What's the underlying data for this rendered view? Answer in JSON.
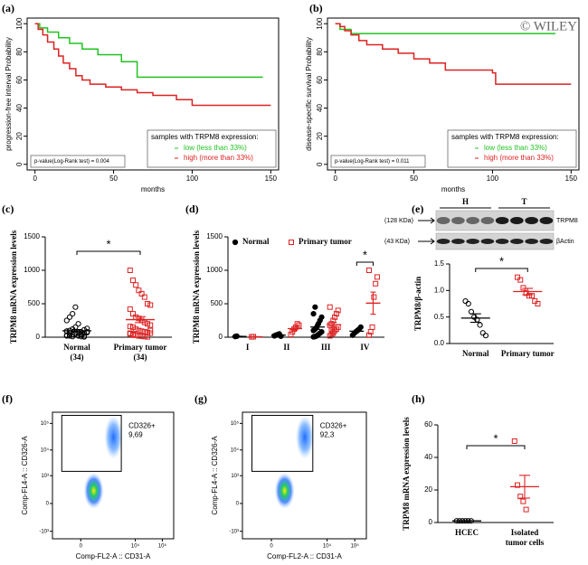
{
  "chart_data": [
    {
      "type": "km",
      "panel_label": "(a)",
      "y_label": "progression-free interval Probability",
      "x_label": "months",
      "xlim": [
        -5,
        155
      ],
      "ylim": [
        -4,
        104
      ],
      "xticks": [
        0,
        50,
        100,
        150
      ],
      "yticks": [
        0,
        20,
        40,
        60,
        80,
        100
      ],
      "legend": "bottom-right",
      "legend_title": "samples with TRPM8 expression:",
      "pvalue_label": "p-value(Log-Rank test) = 0.004",
      "series": [
        {
          "name": "low  (less than 33%)",
          "color": "#22c322",
          "x": [
            0,
            3,
            8,
            15,
            22,
            30,
            40,
            55,
            65,
            145
          ],
          "values": [
            100,
            97,
            94,
            90,
            86,
            82,
            78,
            73,
            62,
            62
          ]
        },
        {
          "name": "high (more than 33%)",
          "color": "#dd2222",
          "x": [
            0,
            2,
            5,
            8,
            12,
            15,
            18,
            22,
            26,
            30,
            35,
            45,
            55,
            65,
            75,
            90,
            100,
            150
          ],
          "values": [
            100,
            96,
            92,
            87,
            82,
            77,
            72,
            68,
            63,
            60,
            57,
            55,
            53,
            51,
            49,
            46,
            42,
            42
          ]
        }
      ]
    },
    {
      "type": "km",
      "panel_label": "(b)",
      "y_label": "disease-specific survival Probability",
      "x_label": "months",
      "watermark": "© WILEY",
      "xlim": [
        -5,
        155
      ],
      "ylim": [
        -4,
        104
      ],
      "xticks": [
        0,
        50,
        100,
        150
      ],
      "yticks": [
        0,
        20,
        40,
        60,
        80,
        100
      ],
      "legend": "bottom-right",
      "legend_title": "samples with TRPM8 expression:",
      "pvalue_label": "p-value(Log-Rank test) = 0.011",
      "series": [
        {
          "name": "low  (less than 33%)",
          "color": "#22c322",
          "x": [
            0,
            3,
            10,
            140
          ],
          "values": [
            100,
            96,
            93,
            93
          ]
        },
        {
          "name": "high (more than 33%)",
          "color": "#dd2222",
          "x": [
            0,
            3,
            6,
            10,
            15,
            20,
            30,
            40,
            50,
            60,
            70,
            100,
            102,
            150
          ],
          "values": [
            100,
            98,
            95,
            92,
            88,
            85,
            82,
            79,
            75,
            72,
            67,
            65,
            57,
            57
          ]
        }
      ]
    },
    {
      "type": "dot",
      "panel_label": "(c)",
      "y_label": "TRPM8 mRNA expression levels",
      "ylim": [
        0,
        1500
      ],
      "yticks": [
        0,
        500,
        1000,
        1500
      ],
      "annotation": "*",
      "groups": [
        {
          "label_lines": [
            "Normal",
            "(34)"
          ],
          "color": "#000000",
          "marker": "circle",
          "filled": false,
          "values": [
            20,
            30,
            40,
            50,
            60,
            10,
            5,
            80,
            90,
            100,
            120,
            150,
            200,
            40,
            60,
            70,
            30,
            20,
            10,
            50,
            60,
            80,
            110,
            130,
            250,
            300,
            350,
            450,
            20,
            40,
            10,
            70,
            90,
            60
          ],
          "mean": 96,
          "error": 18
        },
        {
          "label_lines": [
            "Primary tumor",
            "(34)"
          ],
          "color": "#dd2222",
          "marker": "square",
          "filled": false,
          "values": [
            1000,
            850,
            780,
            700,
            650,
            600,
            500,
            480,
            420,
            350,
            300,
            280,
            250,
            220,
            200,
            180,
            160,
            150,
            120,
            100,
            90,
            80,
            70,
            60,
            50,
            40,
            30,
            20,
            15,
            10,
            5,
            100,
            60,
            30
          ],
          "mean": 263,
          "error": 45
        }
      ]
    },
    {
      "type": "dot",
      "panel_label": "(d)",
      "y_label": "TRPM8 mRNA expression levels",
      "ylim": [
        0,
        1500
      ],
      "yticks": [
        0,
        500,
        1000,
        1500
      ],
      "annotation": "*",
      "legend": "top",
      "categories": [
        "I",
        "II",
        "III",
        "IV"
      ],
      "series": [
        {
          "name": "Normal",
          "color": "#000000",
          "marker": "circle",
          "filled": true,
          "points": [
            [
              10,
              15
            ],
            [
              20,
              30,
              40,
              50,
              15
            ],
            [
              5,
              10,
              20,
              40,
              60,
              80,
              100,
              120,
              150,
              200,
              250,
              300,
              350,
              450
            ],
            [
              30,
              60,
              80,
              100,
              120,
              150
            ]
          ],
          "means": [
            12,
            31,
            152,
            90
          ],
          "errors": [
            3,
            6,
            35,
            18
          ]
        },
        {
          "name": "Primary tumor",
          "color": "#dd2222",
          "marker": "square",
          "filled": false,
          "points": [
            [
              5,
              8
            ],
            [
              40,
              80,
              120,
              150,
              200,
              180
            ],
            [
              20,
              50,
              80,
              100,
              120,
              150,
              180,
              200,
              250,
              300,
              350,
              400,
              450,
              100,
              60
            ],
            [
              30,
              80,
              150,
              600,
              800,
              900,
              1000
            ]
          ],
          "means": [
            6,
            128,
            187,
            509
          ],
          "errors": [
            2,
            25,
            35,
            165
          ]
        }
      ]
    },
    {
      "type": "blot",
      "lanes": [
        "H",
        "T"
      ],
      "rows": [
        {
          "size": "(128 KDa)",
          "name": "TRPM8"
        },
        {
          "size": "(43 KDa)",
          "name": "βActin"
        }
      ]
    },
    {
      "type": "dot",
      "panel_label": "(e)",
      "y_label": "TRPM8/β-actin",
      "ylim": [
        0,
        1.5
      ],
      "yticks": [
        {
          "value": 0,
          "label": "0.0"
        },
        {
          "value": 0.5,
          "label": "0.5"
        },
        {
          "value": 1,
          "label": "1.0"
        },
        {
          "value": 1.5,
          "label": "1.5"
        }
      ],
      "annotation": "*",
      "groups": [
        {
          "label_lines": [
            "Normal"
          ],
          "color": "#000000",
          "marker": "circle",
          "filled": false,
          "values": [
            0.8,
            0.75,
            0.6,
            0.5,
            0.45,
            0.35,
            0.2,
            0.15
          ],
          "mean": 0.48,
          "error": 0.08
        },
        {
          "label_lines": [
            "Primary tumor"
          ],
          "color": "#dd2222",
          "marker": "square",
          "filled": false,
          "values": [
            1.25,
            1.2,
            1.05,
            0.95,
            0.9,
            0.9,
            0.8,
            0.75
          ],
          "mean": 0.98,
          "error": 0.06
        }
      ]
    },
    {
      "type": "flow",
      "panel_label": "(f)",
      "x_label": "Comp-FL2-A :: CD31-A",
      "y_label": "Comp-FL4-A :: CD326-A",
      "scale": "biexponential",
      "xlim": [
        -1000,
        262144
      ],
      "ylim": [
        -2000,
        262144
      ],
      "xticks": [
        0,
        {
          "value": 10000,
          "label": "10⁴"
        },
        {
          "value": 100000,
          "label": "10⁵"
        }
      ],
      "yticks": [
        {
          "value": -1000,
          "label": "-10³"
        },
        0,
        {
          "value": 1000,
          "label": "10³"
        },
        {
          "value": 10000,
          "label": "10⁴"
        },
        {
          "value": 100000,
          "label": "10⁵"
        }
      ],
      "gate_label": "CD326+",
      "gate_percent": "9,69"
    },
    {
      "type": "flow",
      "panel_label": "(g)",
      "x_label": "Comp-FL2-A :: CD31-A",
      "y_label": "Comp-FL4-A :: CD326-A",
      "scale": "biexponential",
      "xlim": [
        -1000,
        262144
      ],
      "ylim": [
        -2000,
        262144
      ],
      "xticks": [
        0,
        {
          "value": 10000,
          "label": "10⁴"
        },
        {
          "value": 100000,
          "label": "10⁵"
        }
      ],
      "yticks": [
        {
          "value": -1000,
          "label": "-10³"
        },
        0,
        {
          "value": 1000,
          "label": "10³"
        },
        {
          "value": 10000,
          "label": "10⁴"
        },
        {
          "value": 100000,
          "label": "10⁵"
        }
      ],
      "gate_label": "CD326+",
      "gate_percent": "92,3"
    },
    {
      "type": "dot",
      "panel_label": "(h)",
      "y_label": "TRPM8 mRNA expression levels",
      "ylim": [
        0,
        60
      ],
      "yticks": [
        0,
        20,
        40,
        60
      ],
      "annotation": "*",
      "groups": [
        {
          "label_lines": [
            "HCEC"
          ],
          "color": "#000000",
          "marker": "circle",
          "filled": false,
          "values": [
            1,
            1,
            1,
            1,
            1,
            1
          ],
          "mean": 1,
          "error": 0
        },
        {
          "label_lines": [
            "Isolated",
            "tumor cells"
          ],
          "color": "#dd2222",
          "marker": "square",
          "filled": false,
          "values": [
            50,
            23,
            16,
            13,
            8
          ],
          "mean": 22,
          "error": 7
        }
      ]
    }
  ]
}
